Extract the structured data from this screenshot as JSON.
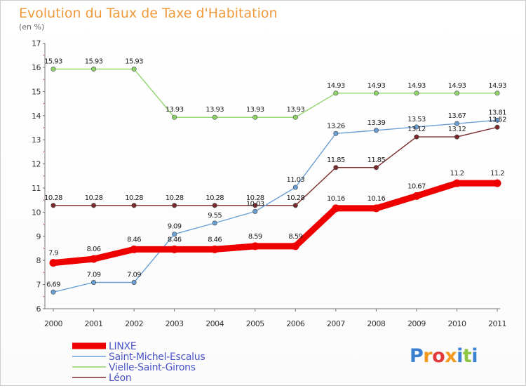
{
  "chart_data": {
    "type": "line",
    "title": "Evolution du Taux de Taxe d'Habitation",
    "subtitle": "(en %)",
    "xlabel": "",
    "ylabel": "",
    "x": [
      "2000",
      "2001",
      "2002",
      "2003",
      "2004",
      "2005",
      "2006",
      "2007",
      "2008",
      "2009",
      "2010",
      "2011"
    ],
    "ylim": [
      6,
      17
    ],
    "yticks": [
      "6",
      "7",
      "8",
      "9",
      "10",
      "11",
      "12",
      "13",
      "14",
      "15",
      "16",
      "17"
    ],
    "grid": false,
    "legend_position": "bottom-left",
    "series": [
      {
        "name": "LINXE",
        "color": "#ee0000",
        "values": [
          7.9,
          8.06,
          8.46,
          8.46,
          8.46,
          8.59,
          8.59,
          10.16,
          10.16,
          10.67,
          11.2,
          11.2
        ],
        "labels": [
          "7.9",
          "8.06",
          "8.46",
          "8.46",
          "8.46",
          "8.59",
          "8.59",
          "10.16",
          "10.16",
          "10.67",
          "11.2",
          "11.2"
        ]
      },
      {
        "name": "Saint-Michel-Escalus",
        "color": "#6a9fd4",
        "values": [
          6.69,
          7.09,
          7.09,
          9.09,
          9.55,
          10.03,
          11.03,
          13.26,
          13.39,
          13.53,
          13.67,
          13.81
        ],
        "labels": [
          "6.69",
          "7.09",
          "7.09",
          "9.09",
          "9.55",
          "10.03",
          "11.03",
          "13.26",
          "13.39",
          "13.53",
          "13.67",
          "13.81"
        ]
      },
      {
        "name": "Vielle-Saint-Girons",
        "color": "#8fd46a",
        "values": [
          15.93,
          15.93,
          15.93,
          13.93,
          13.93,
          13.93,
          13.93,
          14.93,
          14.93,
          14.93,
          14.93,
          14.93
        ],
        "labels": [
          "15.93",
          "15.93",
          "15.93",
          "13.93",
          "13.93",
          "13.93",
          "13.93",
          "14.93",
          "14.93",
          "14.93",
          "14.93",
          "14.93"
        ]
      },
      {
        "name": "Léon",
        "color": "#7a2a2a",
        "values": [
          10.28,
          10.28,
          10.28,
          10.28,
          10.28,
          10.28,
          10.28,
          11.85,
          11.85,
          13.12,
          13.12,
          13.52
        ],
        "labels": [
          "10.28",
          "10.28",
          "10.28",
          "10.28",
          "10.28",
          "10.28",
          "10.28",
          "11.85",
          "11.85",
          "13.12",
          "13.12",
          "13.52"
        ]
      }
    ]
  },
  "branding": {
    "logo_text": "Proxiti",
    "logo_colors": [
      "#3b7fd0",
      "#f39a1e",
      "#e23b3b",
      "#f39a1e",
      "#3b7fd0",
      "#8cc63f",
      "#3b7fd0"
    ]
  }
}
